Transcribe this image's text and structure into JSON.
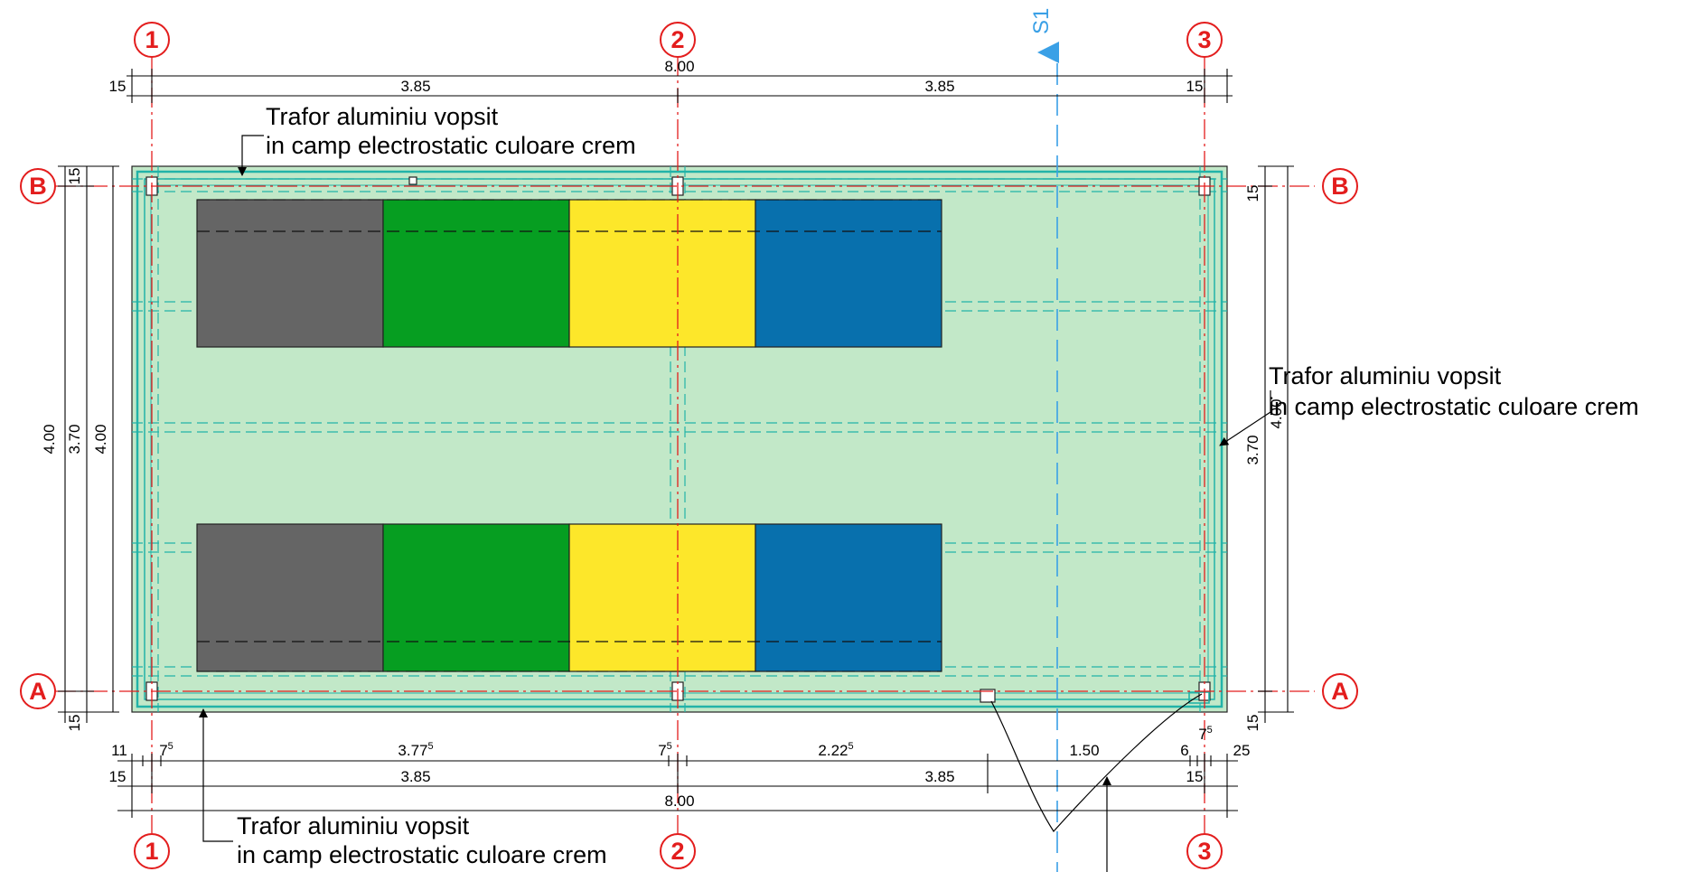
{
  "grid": {
    "axis_1": "1",
    "axis_2": "2",
    "axis_3": "3",
    "axis_a": "A",
    "axis_b": "B"
  },
  "section": {
    "label": "S1"
  },
  "annotations": {
    "top": [
      "Trafor aluminiu vopsit",
      "in camp electrostatic culoare crem"
    ],
    "right": [
      "Trafor aluminiu vopsit",
      "in camp electrostatic culoare crem"
    ],
    "bottom": [
      "Trafor aluminiu vopsit",
      "in camp electrostatic culoare crem"
    ]
  },
  "dimensions": {
    "top_total": "8.00",
    "top_edge_left": "15",
    "top_left_span": "3.85",
    "top_right_span": "3.85",
    "top_edge_right": "15",
    "left_edge_b": "15",
    "left_edge_a": "15",
    "left_outer_total": "4.00",
    "left_inner": "3.70",
    "left_total_2": "4.00",
    "right_edge_b": "15",
    "right_edge_a": "15",
    "right_inner": "3.70",
    "right_total": "4.00",
    "bottom_row1": {
      "d1": "11",
      "d2_base": "7",
      "d2_sup": "5",
      "d3_base": "3.77",
      "d3_sup": "5",
      "d4_base": "7",
      "d4_sup": "5",
      "d5_base": "2.22",
      "d5_sup": "5",
      "d6": "1.50",
      "d7": "6",
      "d8_base": "7",
      "d8_sup": "5",
      "d9": "25"
    },
    "bottom_edge_left": "15",
    "bottom_left_span": "3.85",
    "bottom_right_span": "3.85",
    "bottom_edge_right": "15",
    "bottom_total": "8.00"
  },
  "colors": {
    "plate_fill": "#c2e8c8",
    "frame": "#22b3a8",
    "grid_line": "#e31d1d",
    "section": "#3aa0e6",
    "bin_gray": "#656565",
    "bin_green": "#069e21",
    "bin_yellow": "#fde72a",
    "bin_blue": "#0870ad"
  }
}
